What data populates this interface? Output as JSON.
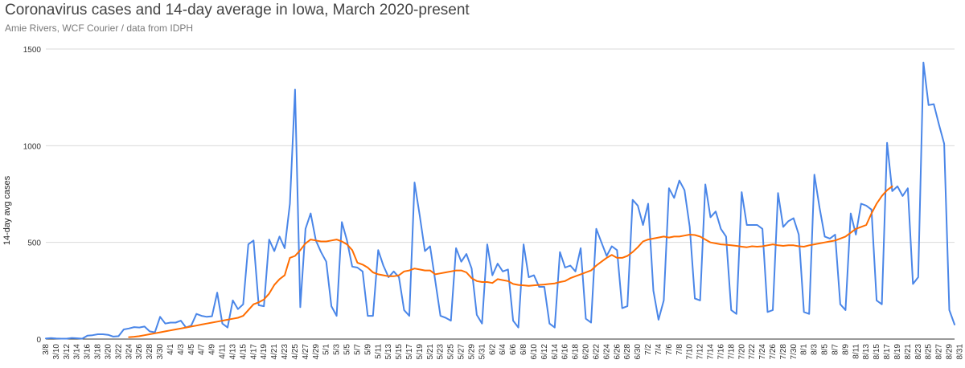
{
  "chart_data": {
    "type": "line",
    "title": "Coronavirus cases and 14-day average in Iowa, March 2020-present",
    "subtitle": "Amie Rivers, WCF Courier / data from IDPH",
    "ylabel": "14-day avg cases",
    "ylim": [
      0,
      1500
    ],
    "yticks": [
      "0",
      "500",
      "1000",
      "1500"
    ],
    "grid": true,
    "x_start": "3/8",
    "x_end": "8/31",
    "xtick_labels": [
      "3/8",
      "3/10",
      "3/12",
      "3/14",
      "3/16",
      "3/18",
      "3/20",
      "3/22",
      "3/24",
      "3/26",
      "3/28",
      "3/30",
      "4/1",
      "4/3",
      "4/5",
      "4/7",
      "4/9",
      "4/11",
      "4/13",
      "4/15",
      "4/17",
      "4/19",
      "4/21",
      "4/23",
      "4/25",
      "4/27",
      "4/29",
      "5/1",
      "5/3",
      "5/5",
      "5/7",
      "5/9",
      "5/11",
      "5/13",
      "5/15",
      "5/17",
      "5/19",
      "5/21",
      "5/23",
      "5/25",
      "5/27",
      "5/29",
      "5/31",
      "6/2",
      "6/4",
      "6/6",
      "6/8",
      "6/10",
      "6/12",
      "6/14",
      "6/16",
      "6/18",
      "6/20",
      "6/22",
      "6/24",
      "6/26",
      "6/28",
      "6/30",
      "7/2",
      "7/4",
      "7/6",
      "7/8",
      "7/10",
      "7/12",
      "7/14",
      "7/16",
      "7/18",
      "7/20",
      "7/22",
      "7/24",
      "7/26",
      "7/28",
      "7/30",
      "8/1",
      "8/3",
      "8/5",
      "8/7",
      "8/9",
      "8/11",
      "8/13",
      "8/15",
      "8/17",
      "8/19",
      "8/21",
      "8/23",
      "8/25",
      "8/27",
      "8/29",
      "8/31"
    ],
    "series": [
      {
        "color": "#4a86e8",
        "values": [
          3,
          5,
          3,
          2,
          2,
          6,
          4,
          2,
          18,
          20,
          25,
          25,
          22,
          13,
          15,
          50,
          55,
          62,
          60,
          65,
          40,
          35,
          115,
          80,
          85,
          85,
          95,
          60,
          70,
          130,
          120,
          115,
          118,
          240,
          80,
          60,
          200,
          155,
          180,
          490,
          510,
          175,
          170,
          515,
          455,
          530,
          470,
          700,
          1290,
          165,
          570,
          650,
          510,
          450,
          400,
          170,
          120,
          605,
          510,
          375,
          370,
          350,
          120,
          120,
          460,
          380,
          320,
          350,
          320,
          150,
          120,
          810,
          640,
          455,
          480,
          300,
          120,
          110,
          95,
          470,
          400,
          440,
          365,
          125,
          80,
          490,
          330,
          390,
          350,
          360,
          95,
          60,
          490,
          320,
          330,
          270,
          270,
          80,
          60,
          450,
          370,
          380,
          350,
          470,
          105,
          85,
          570,
          500,
          430,
          480,
          460,
          160,
          170,
          720,
          690,
          590,
          700,
          250,
          100,
          200,
          780,
          730,
          820,
          770,
          580,
          210,
          200,
          800,
          630,
          660,
          570,
          530,
          150,
          130,
          760,
          590,
          590,
          590,
          570,
          140,
          150,
          755,
          580,
          610,
          625,
          540,
          140,
          130,
          850,
          680,
          530,
          520,
          540,
          180,
          150,
          650,
          540,
          700,
          690,
          670,
          200,
          180,
          1015,
          765,
          790,
          740,
          780,
          285,
          320,
          1430,
          1210,
          1215,
          1110,
          1010,
          150,
          75
        ]
      },
      {
        "color": "#ff6d01",
        "start_index": 16,
        "values": [
          10,
          12,
          15,
          20,
          25,
          30,
          35,
          40,
          45,
          50,
          55,
          60,
          65,
          70,
          75,
          80,
          85,
          90,
          95,
          100,
          105,
          110,
          120,
          150,
          180,
          190,
          205,
          235,
          280,
          310,
          330,
          420,
          430,
          460,
          495,
          515,
          510,
          505,
          505,
          510,
          515,
          505,
          490,
          460,
          395,
          385,
          370,
          345,
          335,
          330,
          325,
          325,
          330,
          350,
          355,
          365,
          360,
          355,
          355,
          335,
          340,
          345,
          350,
          355,
          355,
          345,
          315,
          300,
          295,
          295,
          290,
          310,
          305,
          300,
          285,
          280,
          278,
          275,
          278,
          280,
          282,
          285,
          288,
          295,
          300,
          315,
          325,
          335,
          345,
          355,
          380,
          400,
          420,
          435,
          420,
          420,
          430,
          450,
          475,
          505,
          515,
          520,
          525,
          530,
          525,
          530,
          530,
          535,
          540,
          538,
          530,
          515,
          500,
          495,
          490,
          488,
          485,
          482,
          478,
          475,
          480,
          478,
          480,
          485,
          490,
          485,
          482,
          485,
          485,
          480,
          478,
          485,
          490,
          495,
          500,
          505,
          510,
          520,
          530,
          550,
          570,
          580,
          590,
          650,
          700,
          740,
          770,
          790
        ]
      }
    ]
  }
}
